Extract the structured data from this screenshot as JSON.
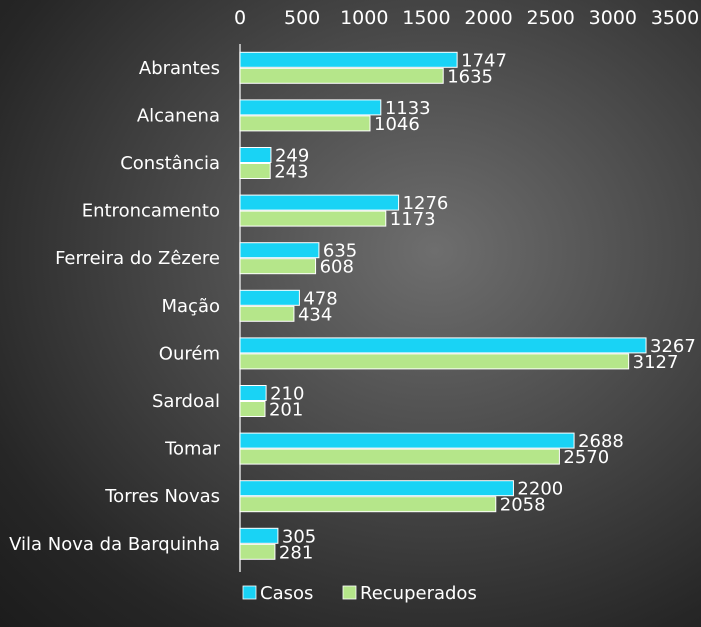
{
  "chart_data": {
    "type": "bar",
    "orientation": "horizontal",
    "title": "",
    "xlabel": "",
    "ylabel": "",
    "xlim": [
      0,
      3500
    ],
    "ticks": [
      "0",
      "500",
      "1000",
      "1500",
      "2000",
      "2500",
      "3000",
      "3500"
    ],
    "tick_values": [
      0,
      500,
      1000,
      1500,
      2000,
      2500,
      3000,
      3500
    ],
    "grid": false,
    "legend_position": "bottom-left",
    "categories": [
      "Abrantes",
      "Alcanena",
      "Constância",
      "Entroncamento",
      "Ferreira do Zêzere",
      "Mação",
      "Ourém",
      "Sardoal",
      "Tomar",
      "Torres Novas",
      "Vila Nova da Barquinha"
    ],
    "series": [
      {
        "name": "Casos",
        "color": "#19d3f5",
        "values": [
          1747,
          1133,
          249,
          1276,
          635,
          478,
          3267,
          210,
          2688,
          2200,
          305
        ]
      },
      {
        "name": "Recuperados",
        "color": "#b5e68a",
        "values": [
          1635,
          1046,
          243,
          1173,
          608,
          434,
          3127,
          201,
          2570,
          2058,
          281
        ]
      }
    ]
  }
}
